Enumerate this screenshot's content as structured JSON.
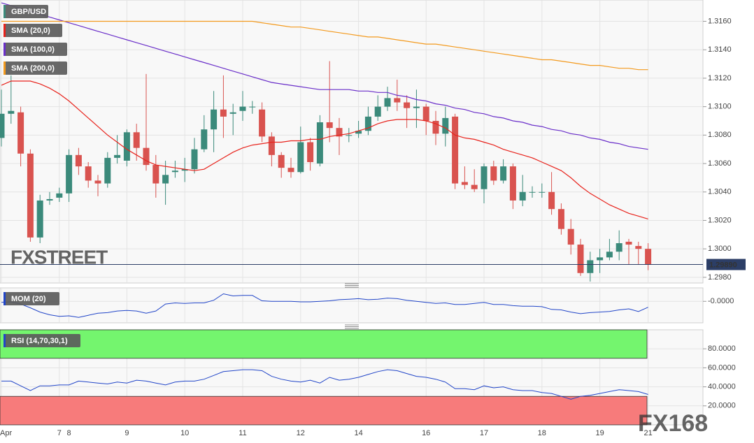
{
  "chart_data": [
    {
      "type": "candlestick",
      "name": "GBP/USD",
      "categories": [
        "Apr",
        null,
        null,
        null,
        null,
        null,
        "7",
        "8",
        null,
        null,
        null,
        null,
        null,
        "9",
        null,
        null,
        null,
        null,
        null,
        "10",
        null,
        null,
        null,
        null,
        null,
        "11",
        null,
        null,
        null,
        null,
        null,
        "12",
        null,
        null,
        null,
        null,
        null,
        "14",
        null,
        null,
        null,
        null,
        null,
        null,
        "16",
        null,
        null,
        null,
        null,
        null,
        "17",
        null,
        null,
        null,
        null,
        null,
        "18",
        null,
        null,
        null,
        null,
        null,
        "19",
        null,
        null,
        null,
        null,
        "21"
      ],
      "open": [
        1.3078,
        1.3095,
        1.3096,
        1.3067,
        1.3008,
        1.3034,
        1.3036,
        1.3039,
        1.3066,
        1.3058,
        1.3048,
        1.3046,
        1.3064,
        1.3062,
        1.3082,
        1.3071,
        1.3059,
        1.3046,
        1.3054,
        1.3055,
        1.3056,
        1.307,
        1.3084,
        1.3098,
        1.3095,
        1.3097,
        1.31,
        1.3098,
        1.3079,
        1.3066,
        1.3057,
        1.3054,
        1.3075,
        1.306,
        1.3089,
        1.3085,
        1.308,
        1.3081,
        1.3083,
        1.3093,
        1.31,
        1.3106,
        1.3103,
        1.3099,
        1.31,
        1.309,
        1.3081,
        1.3093,
        1.3047,
        1.3045,
        1.3042,
        1.3058,
        1.3048,
        1.3058,
        1.3034,
        1.304,
        1.304,
        1.304,
        1.3028,
        1.3014,
        1.3003,
        1.2983,
        1.2992,
        1.2994,
        1.2998,
        1.3005,
        1.3002,
        1.3
      ],
      "high": [
        1.3112,
        1.3122,
        1.31,
        1.307,
        1.3038,
        1.304,
        1.3043,
        1.307,
        1.3071,
        1.3061,
        1.3052,
        1.3068,
        1.308,
        1.3084,
        1.3088,
        1.3123,
        1.3066,
        1.3062,
        1.3062,
        1.3064,
        1.3078,
        1.3094,
        1.3111,
        1.3122,
        1.3102,
        1.3111,
        1.3104,
        1.3103,
        1.3082,
        1.3068,
        1.3064,
        1.3086,
        1.3078,
        1.3094,
        1.3132,
        1.3092,
        1.3085,
        1.309,
        1.31,
        1.3108,
        1.3114,
        1.3119,
        1.3108,
        1.3112,
        1.3102,
        1.3097,
        1.31,
        1.3095,
        1.3058,
        1.3056,
        1.306,
        1.3062,
        1.3063,
        1.306,
        1.3052,
        1.3044,
        1.3046,
        1.3054,
        1.3032,
        1.3021,
        1.3007,
        1.2998,
        1.3,
        1.3007,
        1.3013,
        1.3007,
        1.3005,
        1.3004
      ],
      "low": [
        1.3072,
        1.3088,
        1.3058,
        1.3005,
        1.3004,
        1.3031,
        1.3033,
        1.3033,
        1.3052,
        1.3043,
        1.3037,
        1.3043,
        1.306,
        1.3058,
        1.3062,
        1.3055,
        1.3036,
        1.3031,
        1.305,
        1.3047,
        1.3053,
        1.3068,
        1.3068,
        1.3078,
        1.308,
        1.309,
        1.3095,
        1.3075,
        1.3058,
        1.305,
        1.305,
        1.3053,
        1.3055,
        1.3058,
        1.3075,
        1.3066,
        1.3075,
        1.3078,
        1.308,
        1.309,
        1.3097,
        1.3097,
        1.3085,
        1.3085,
        1.308,
        1.3073,
        1.3072,
        1.3042,
        1.3042,
        1.304,
        1.3032,
        1.3045,
        1.3046,
        1.3028,
        1.303,
        1.3036,
        1.3036,
        1.3024,
        1.301,
        1.2996,
        1.2981,
        1.2977,
        1.2983,
        1.2992,
        1.2992,
        1.2989,
        1.2989,
        1.2985
      ],
      "close": [
        1.3095,
        1.3097,
        1.3067,
        1.3008,
        1.3034,
        1.3035,
        1.3039,
        1.3066,
        1.3058,
        1.3048,
        1.3046,
        1.3064,
        1.3066,
        1.3082,
        1.3071,
        1.3059,
        1.3046,
        1.3052,
        1.3055,
        1.3056,
        1.307,
        1.3084,
        1.3098,
        1.3093,
        1.3096,
        1.31,
        1.31,
        1.3079,
        1.3066,
        1.3057,
        1.3054,
        1.3075,
        1.3061,
        1.3089,
        1.3085,
        1.3079,
        1.308,
        1.3083,
        1.3093,
        1.31,
        1.3106,
        1.3103,
        1.3099,
        1.31,
        1.309,
        1.3081,
        1.3092,
        1.3046,
        1.3045,
        1.3042,
        1.3058,
        1.3048,
        1.3058,
        1.3034,
        1.304,
        1.304,
        1.304,
        1.3028,
        1.3014,
        1.3003,
        1.2983,
        1.2992,
        1.2994,
        1.2998,
        1.3004,
        1.3003,
        1.3,
        1.2989
      ],
      "up_color": "#3b8a7b",
      "down_color": "#d9534f",
      "series": [
        {
          "name": "SMA (20,0)",
          "color": "#e8231c",
          "values": [
            1.3115,
            1.3118,
            1.3118,
            1.3118,
            1.3116,
            1.3113,
            1.3109,
            1.3104,
            1.3098,
            1.3092,
            1.3086,
            1.308,
            1.3075,
            1.307,
            1.3066,
            1.3062,
            1.3059,
            1.3058,
            1.3057,
            1.3056,
            1.3055,
            1.3056,
            1.306,
            1.3064,
            1.3068,
            1.3071,
            1.3073,
            1.3074,
            1.3075,
            1.3075,
            1.3076,
            1.3076,
            1.3077,
            1.3077,
            1.3079,
            1.308,
            1.3081,
            1.3083,
            1.3085,
            1.3088,
            1.309,
            1.3091,
            1.3091,
            1.3091,
            1.309,
            1.3088,
            1.3085,
            1.308,
            1.3078,
            1.3077,
            1.3075,
            1.3073,
            1.307,
            1.3068,
            1.3066,
            1.3064,
            1.3061,
            1.3058,
            1.3055,
            1.305,
            1.3044,
            1.3039,
            1.3035,
            1.3031,
            1.3028,
            1.3025,
            1.3023,
            1.3021
          ]
        },
        {
          "name": "SMA (100,0)",
          "color": "#6a2fc9",
          "values": [
            1.3173,
            1.3171,
            1.3169,
            1.3167,
            1.3165,
            1.3163,
            1.3161,
            1.3159,
            1.3157,
            1.3155,
            1.3153,
            1.3151,
            1.3149,
            1.3147,
            1.3145,
            1.3143,
            1.3141,
            1.3139,
            1.3137,
            1.3135,
            1.3133,
            1.3131,
            1.3129,
            1.3127,
            1.3125,
            1.3123,
            1.3121,
            1.3119,
            1.3117,
            1.3116,
            1.3115,
            1.3114,
            1.3113,
            1.3112,
            1.3112,
            1.3112,
            1.3112,
            1.3111,
            1.3111,
            1.311,
            1.311,
            1.3108,
            1.3107,
            1.3105,
            1.3104,
            1.3102,
            1.3101,
            1.3099,
            1.3098,
            1.3096,
            1.3095,
            1.3093,
            1.3092,
            1.309,
            1.3089,
            1.3087,
            1.3086,
            1.3084,
            1.3083,
            1.3081,
            1.308,
            1.3078,
            1.3077,
            1.3075,
            1.3074,
            1.3072,
            1.3071,
            1.307
          ]
        },
        {
          "name": "SMA (200,0)",
          "color": "#f39a1e",
          "values": [
            1.316,
            1.316,
            1.316,
            1.316,
            1.316,
            1.316,
            1.316,
            1.316,
            1.316,
            1.316,
            1.316,
            1.316,
            1.316,
            1.316,
            1.316,
            1.316,
            1.316,
            1.316,
            1.316,
            1.316,
            1.316,
            1.316,
            1.316,
            1.316,
            1.316,
            1.316,
            1.316,
            1.3159,
            1.3158,
            1.3157,
            1.3156,
            1.3156,
            1.3155,
            1.3154,
            1.3153,
            1.3152,
            1.3151,
            1.315,
            1.3149,
            1.3149,
            1.3148,
            1.3147,
            1.3146,
            1.3145,
            1.3144,
            1.3144,
            1.3143,
            1.3142,
            1.3141,
            1.314,
            1.3139,
            1.3138,
            1.3137,
            1.3136,
            1.3135,
            1.3134,
            1.3133,
            1.3133,
            1.3132,
            1.3131,
            1.313,
            1.3129,
            1.3129,
            1.3128,
            1.3127,
            1.3127,
            1.3126,
            1.3126
          ]
        }
      ],
      "ylim": [
        1.2976,
        1.3175
      ],
      "yticks": [
        {
          "value": 1.316,
          "label": "1.3160"
        },
        {
          "value": 1.314,
          "label": "1.3140"
        },
        {
          "value": 1.312,
          "label": "1.3120"
        },
        {
          "value": 1.31,
          "label": "1.3100"
        },
        {
          "value": 1.308,
          "label": "1.3080"
        },
        {
          "value": 1.306,
          "label": "1.3060"
        },
        {
          "value": 1.304,
          "label": "1.3040"
        },
        {
          "value": 1.302,
          "label": "1.3020"
        },
        {
          "value": 1.3,
          "label": "1.3000"
        },
        {
          "value": 1.298,
          "label": "1.2980"
        }
      ],
      "last_price": {
        "value": 1.2989,
        "label": "1.29890"
      },
      "grid": true
    },
    {
      "type": "line",
      "name": "MOM (20)",
      "color": "#2145c8",
      "values": [
        -0.0002,
        -0.0001,
        -0.0005,
        -0.0012,
        -0.002,
        -0.0025,
        -0.0028,
        -0.0027,
        -0.003,
        -0.0026,
        -0.0022,
        -0.0021,
        -0.0018,
        -0.0017,
        -0.0018,
        -0.0022,
        -0.0018,
        -0.0005,
        -0.0003,
        -0.0004,
        -0.0003,
        -0.0003,
        0.0002,
        0.0014,
        0.001,
        0.0011,
        0.0011,
        0.0001,
        0.0,
        0.0,
        0.0,
        -0.0001,
        -0.0001,
        0.0,
        0.0001,
        0.0003,
        0.0004,
        0.0005,
        0.0003,
        0.0004,
        0.0006,
        0.0005,
        0.0002,
        0.0,
        -0.0002,
        -0.0004,
        -0.0003,
        -0.0006,
        -0.0006,
        -0.0004,
        -0.0002,
        -0.0006,
        -0.0006,
        -0.0008,
        -0.0009,
        -0.0009,
        -0.001,
        -0.0015,
        -0.0016,
        -0.002,
        -0.0023,
        -0.0021,
        -0.002,
        -0.0019,
        -0.0016,
        -0.0014,
        -0.0019,
        -0.0011
      ],
      "ylim": [
        -0.004,
        0.0025
      ],
      "yticks": [
        {
          "value": 0,
          "label": "-0.0000"
        }
      ],
      "grid": true
    },
    {
      "type": "line",
      "name": "RSI (14,70,30,1)",
      "color": "#2145c8",
      "values": [
        46,
        46,
        41,
        36,
        41,
        41,
        42,
        42,
        46,
        45,
        44,
        43,
        45,
        44,
        47,
        46,
        44,
        42,
        45,
        46,
        46,
        48,
        52,
        56,
        57,
        58,
        58,
        57,
        51,
        48,
        46,
        45,
        47,
        44,
        50,
        47,
        48,
        50,
        53,
        56,
        58,
        57,
        54,
        51,
        50,
        48,
        45,
        38,
        38,
        37,
        41,
        39,
        40,
        37,
        36,
        36,
        34,
        33,
        30,
        27,
        30,
        31,
        33,
        35,
        37,
        36,
        35,
        32
      ],
      "upper": 70,
      "lower": 30,
      "upper_color": "#74f56e",
      "lower_color": "#f77b7b",
      "ylim": [
        0,
        100
      ],
      "yticks": [
        {
          "value": 80,
          "label": "80.0000"
        },
        {
          "value": 60,
          "label": "60.0000"
        },
        {
          "value": 40,
          "label": "40.0000"
        },
        {
          "value": 20,
          "label": "20.0000"
        }
      ],
      "grid": true
    }
  ],
  "watermarks": [
    "FXSTREET",
    "FX168"
  ]
}
